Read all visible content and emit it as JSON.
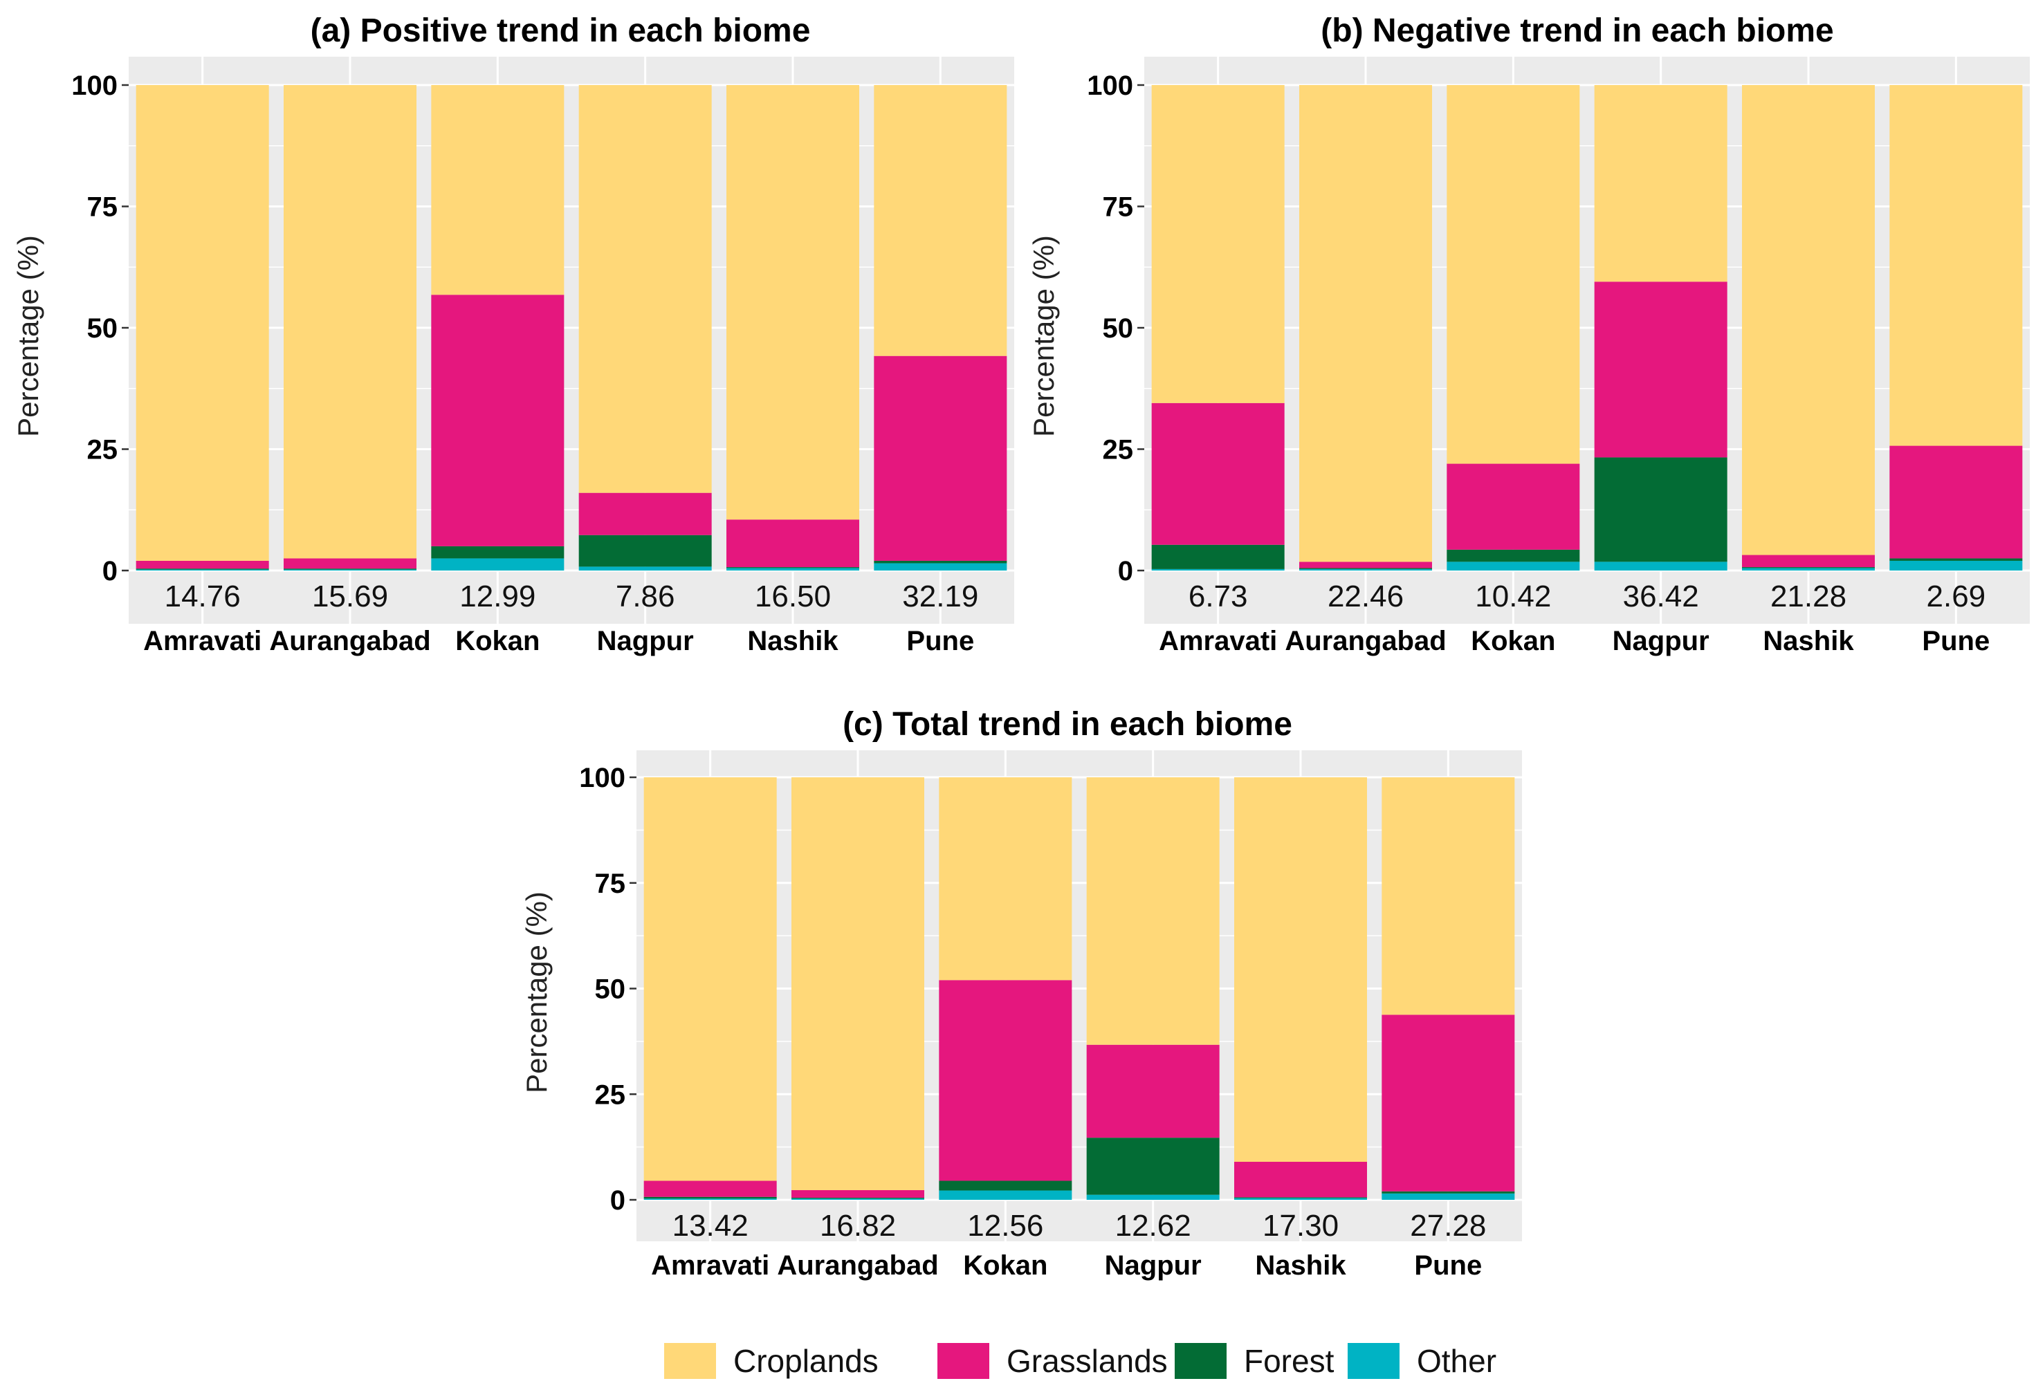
{
  "series_names": [
    "Croplands",
    "Grasslands",
    "Forest",
    "Other"
  ],
  "colors": {
    "Croplands": "#FFD878",
    "Grasslands": "#E5177E",
    "Forest": "#036C35",
    "Other": "#00B3C4",
    "panel_bg": "#EBEBEB",
    "grid": "#FFFFFF"
  },
  "chart_data": [
    {
      "id": "a",
      "type": "bar",
      "stacked": true,
      "title": "(a) Positive trend in each biome",
      "ylabel": "Percentage (%)",
      "ylim": [
        0,
        100
      ],
      "yticks": [
        "0",
        "25",
        "50",
        "75",
        "100"
      ],
      "categories": [
        "Amravati",
        "Aurangabad",
        "Kokan",
        "Nagpur",
        "Nashik",
        "Pune"
      ],
      "bar_labels": [
        "14.76",
        "15.69",
        "12.99",
        "7.86",
        "16.50",
        "32.19"
      ],
      "series": [
        {
          "name": "Other",
          "values": [
            0.2,
            0.2,
            2.5,
            0.8,
            0.5,
            1.5
          ]
        },
        {
          "name": "Forest",
          "values": [
            0.2,
            0.2,
            2.5,
            6.5,
            0.2,
            0.5
          ]
        },
        {
          "name": "Grasslands",
          "values": [
            1.6,
            2.1,
            51.8,
            8.7,
            9.8,
            42.2
          ]
        },
        {
          "name": "Croplands",
          "values": [
            98.0,
            97.5,
            43.2,
            84.0,
            89.5,
            55.8
          ]
        }
      ]
    },
    {
      "id": "b",
      "type": "bar",
      "stacked": true,
      "title": "(b) Negative trend in each biome",
      "ylabel": "Percentage (%)",
      "ylim": [
        0,
        100
      ],
      "yticks": [
        "0",
        "25",
        "50",
        "75",
        "100"
      ],
      "categories": [
        "Amravati",
        "Aurangabad",
        "Kokan",
        "Nagpur",
        "Nashik",
        "Pune"
      ],
      "bar_labels": [
        "6.73",
        "22.46",
        "10.42",
        "36.42",
        "21.28",
        "2.69"
      ],
      "series": [
        {
          "name": "Other",
          "values": [
            0.3,
            0.3,
            1.8,
            1.8,
            0.5,
            2.0
          ]
        },
        {
          "name": "Forest",
          "values": [
            5.0,
            0.2,
            2.5,
            21.5,
            0.2,
            0.5
          ]
        },
        {
          "name": "Grasslands",
          "values": [
            29.2,
            1.3,
            17.7,
            36.2,
            2.5,
            23.2
          ]
        },
        {
          "name": "Croplands",
          "values": [
            65.5,
            98.2,
            78.0,
            40.5,
            96.8,
            74.3
          ]
        }
      ]
    },
    {
      "id": "c",
      "type": "bar",
      "stacked": true,
      "title": "(c) Total trend in each biome",
      "ylabel": "Percentage (%)",
      "ylim": [
        0,
        100
      ],
      "yticks": [
        "0",
        "25",
        "50",
        "75",
        "100"
      ],
      "categories": [
        "Amravati",
        "Aurangabad",
        "Kokan",
        "Nagpur",
        "Nashik",
        "Pune"
      ],
      "bar_labels": [
        "13.42",
        "16.82",
        "12.56",
        "12.62",
        "17.30",
        "27.28"
      ],
      "series": [
        {
          "name": "Other",
          "values": [
            0.3,
            0.3,
            2.2,
            1.2,
            0.4,
            1.5
          ]
        },
        {
          "name": "Forest",
          "values": [
            0.4,
            0.2,
            2.3,
            13.5,
            0.2,
            0.5
          ]
        },
        {
          "name": "Grasslands",
          "values": [
            3.8,
            1.8,
            47.5,
            22.0,
            8.4,
            41.8
          ]
        },
        {
          "name": "Croplands",
          "values": [
            95.5,
            97.7,
            48.0,
            63.3,
            91.0,
            56.2
          ]
        }
      ]
    }
  ]
}
